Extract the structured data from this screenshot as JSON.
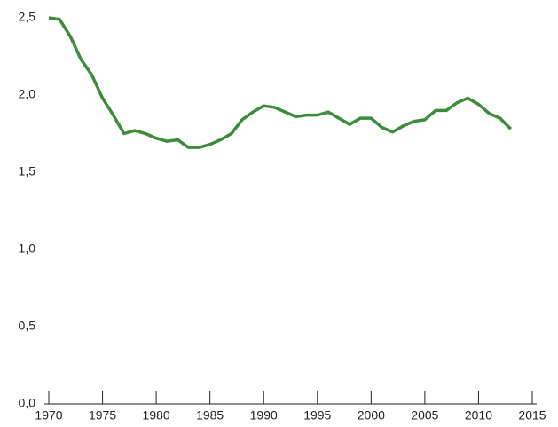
{
  "chart_data": {
    "type": "line",
    "x": [
      1970,
      1971,
      1972,
      1973,
      1974,
      1975,
      1976,
      1977,
      1978,
      1979,
      1980,
      1981,
      1982,
      1983,
      1984,
      1985,
      1986,
      1987,
      1988,
      1989,
      1990,
      1991,
      1992,
      1993,
      1994,
      1995,
      1996,
      1997,
      1998,
      1999,
      2000,
      2001,
      2002,
      2003,
      2004,
      2005,
      2006,
      2007,
      2008,
      2009,
      2010,
      2011,
      2012,
      2013
    ],
    "values": [
      2.5,
      2.49,
      2.38,
      2.23,
      2.13,
      1.98,
      1.87,
      1.75,
      1.77,
      1.75,
      1.72,
      1.7,
      1.71,
      1.66,
      1.66,
      1.68,
      1.71,
      1.75,
      1.84,
      1.89,
      1.93,
      1.92,
      1.89,
      1.86,
      1.87,
      1.87,
      1.89,
      1.85,
      1.81,
      1.85,
      1.85,
      1.79,
      1.76,
      1.8,
      1.83,
      1.84,
      1.9,
      1.9,
      1.95,
      1.98,
      1.94,
      1.88,
      1.85,
      1.78
    ],
    "color": "#3c8c3c",
    "xlim": [
      1970,
      2015
    ],
    "xticks": [
      1970,
      1975,
      1980,
      1985,
      1990,
      1995,
      2000,
      2005,
      2010,
      2015
    ],
    "ylim": [
      0,
      2.5
    ],
    "yticks": [
      {
        "value": 0,
        "label": "0,0"
      },
      {
        "value": 0.5,
        "label": "0,5"
      },
      {
        "value": 1,
        "label": "1,0"
      },
      {
        "value": 1.5,
        "label": "1,5"
      },
      {
        "value": 2,
        "label": "2,0"
      },
      {
        "value": 2.5,
        "label": "2,5"
      }
    ]
  }
}
